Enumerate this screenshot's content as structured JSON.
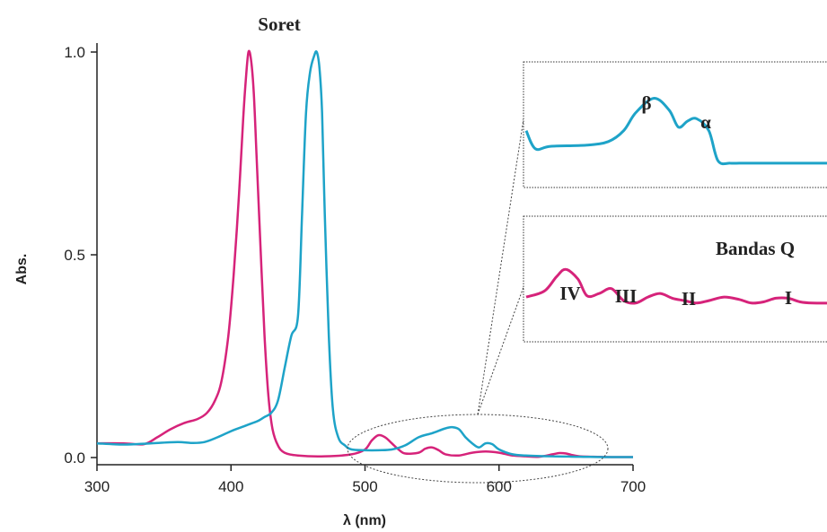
{
  "chart_data": {
    "type": "line",
    "xlabel": "λ (nm)",
    "ylabel": "Abs.",
    "xlim": [
      300,
      700
    ],
    "ylim": [
      0,
      1.0
    ],
    "x_ticks": [
      300,
      400,
      500,
      600,
      700
    ],
    "y_ticks": [
      0.0,
      0.5,
      1.0
    ],
    "x_tick_labels": [
      "300",
      "400",
      "500",
      "600",
      "700"
    ],
    "y_tick_labels": [
      "0.0",
      "0.5",
      "1.0"
    ],
    "grid": false,
    "colors": {
      "magenta": "#d6237a",
      "cyan": "#1ea3c8",
      "axis": "#222222",
      "inset_border": "#333333"
    },
    "annotations": {
      "soret": "Soret",
      "bandas_q": "Bandas Q",
      "beta": "β",
      "alpha": "α",
      "band_iv": "IV",
      "band_iii": "III",
      "band_ii": "II",
      "band_i": "I"
    },
    "series": [
      {
        "color": "#d6237a",
        "x": [
          300,
          320,
          335,
          345,
          355,
          365,
          375,
          382,
          388,
          393,
          398,
          402,
          406,
          409,
          411,
          413,
          415,
          417,
          419,
          422,
          425,
          428,
          431,
          435,
          440,
          450,
          470,
          490,
          500,
          505,
          510,
          515,
          520,
          525,
          530,
          540,
          545,
          550,
          555,
          560,
          570,
          580,
          590,
          600,
          610,
          620,
          630,
          640,
          645,
          650,
          655,
          660,
          670,
          690,
          700
        ],
        "y": [
          0.035,
          0.035,
          0.033,
          0.05,
          0.07,
          0.085,
          0.095,
          0.11,
          0.14,
          0.19,
          0.3,
          0.45,
          0.65,
          0.83,
          0.93,
          1.0,
          0.98,
          0.9,
          0.75,
          0.52,
          0.3,
          0.15,
          0.07,
          0.03,
          0.012,
          0.005,
          0.003,
          0.008,
          0.02,
          0.042,
          0.055,
          0.05,
          0.035,
          0.02,
          0.01,
          0.012,
          0.022,
          0.025,
          0.018,
          0.008,
          0.005,
          0.012,
          0.015,
          0.012,
          0.005,
          0.003,
          0.002,
          0.008,
          0.011,
          0.01,
          0.006,
          0.003,
          0.002,
          0.001,
          0.001
        ]
      },
      {
        "color": "#1ea3c8",
        "x": [
          300,
          320,
          340,
          360,
          370,
          380,
          390,
          400,
          408,
          412,
          416,
          420,
          425,
          430,
          435,
          440,
          445,
          450,
          453,
          456,
          459,
          462,
          464,
          466,
          468,
          470,
          473,
          476,
          480,
          485,
          490,
          500,
          510,
          520,
          530,
          540,
          550,
          560,
          565,
          570,
          575,
          580,
          585,
          590,
          595,
          600,
          610,
          620,
          640,
          660,
          680,
          700
        ],
        "y": [
          0.035,
          0.032,
          0.035,
          0.038,
          0.036,
          0.038,
          0.05,
          0.065,
          0.075,
          0.08,
          0.085,
          0.09,
          0.1,
          0.11,
          0.14,
          0.22,
          0.3,
          0.35,
          0.6,
          0.85,
          0.95,
          0.99,
          1.0,
          0.96,
          0.85,
          0.6,
          0.3,
          0.12,
          0.05,
          0.03,
          0.02,
          0.018,
          0.018,
          0.02,
          0.03,
          0.05,
          0.06,
          0.072,
          0.075,
          0.07,
          0.05,
          0.035,
          0.025,
          0.035,
          0.033,
          0.02,
          0.008,
          0.005,
          0.003,
          0.002,
          0.001,
          0.001
        ]
      }
    ],
    "inset_top": {
      "color": "#1ea3c8",
      "x": [
        0.0,
        0.03,
        0.08,
        0.2,
        0.27,
        0.32,
        0.36,
        0.42,
        0.47,
        0.5,
        0.53,
        0.56,
        0.6,
        0.63,
        0.67,
        0.7,
        0.73,
        0.76,
        1.0
      ],
      "y": [
        0.45,
        0.3,
        0.32,
        0.33,
        0.36,
        0.45,
        0.6,
        0.72,
        0.62,
        0.48,
        0.53,
        0.55,
        0.45,
        0.2,
        0.18,
        0.18,
        0.18,
        0.18,
        0.18
      ]
    },
    "inset_bottom": {
      "color": "#d6237a",
      "x": [
        0.0,
        0.06,
        0.1,
        0.13,
        0.17,
        0.2,
        0.24,
        0.28,
        0.32,
        0.36,
        0.4,
        0.44,
        0.48,
        0.52,
        0.56,
        0.6,
        0.65,
        0.7,
        0.74,
        0.78,
        0.82,
        0.86,
        0.9,
        0.94,
        1.0
      ],
      "y": [
        0.35,
        0.4,
        0.52,
        0.58,
        0.5,
        0.36,
        0.38,
        0.42,
        0.32,
        0.3,
        0.35,
        0.38,
        0.34,
        0.32,
        0.3,
        0.32,
        0.35,
        0.33,
        0.3,
        0.31,
        0.34,
        0.34,
        0.31,
        0.3,
        0.3
      ]
    }
  }
}
